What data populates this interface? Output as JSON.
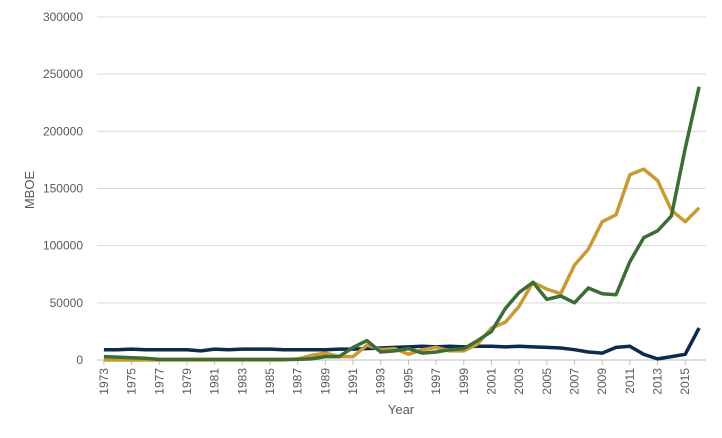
{
  "chart_data": {
    "type": "line",
    "x_label": "Year",
    "y_label": "MBOE",
    "x": [
      1973,
      1974,
      1975,
      1976,
      1977,
      1978,
      1979,
      1980,
      1981,
      1982,
      1983,
      1984,
      1985,
      1986,
      1987,
      1988,
      1989,
      1990,
      1991,
      1992,
      1993,
      1994,
      1995,
      1996,
      1997,
      1998,
      1999,
      2000,
      2001,
      2002,
      2003,
      2004,
      2005,
      2006,
      2007,
      2008,
      2009,
      2010,
      2011,
      2012,
      2013,
      2014,
      2015,
      2016
    ],
    "xlim": [
      1972.5,
      2016.5
    ],
    "xticks": [
      1973,
      1975,
      1977,
      1979,
      1981,
      1983,
      1985,
      1987,
      1989,
      1991,
      1993,
      1995,
      1997,
      1999,
      2001,
      2003,
      2005,
      2007,
      2009,
      2011,
      2013,
      2015
    ],
    "ylim": [
      0,
      300000
    ],
    "yticks": [
      0,
      50000,
      100000,
      150000,
      200000,
      250000,
      300000
    ],
    "grid": true,
    "series": [
      {
        "color": "#0e2b4b",
        "values": [
          9000,
          9000,
          9500,
          9000,
          9000,
          9000,
          9000,
          8000,
          9500,
          9000,
          9500,
          9500,
          9500,
          9000,
          9000,
          9000,
          9000,
          9500,
          9500,
          10000,
          10500,
          11000,
          11500,
          12000,
          11500,
          12000,
          11500,
          12000,
          12000,
          11500,
          12000,
          11500,
          11000,
          10500,
          9000,
          7000,
          6000,
          11000,
          12000,
          5000,
          1000,
          3000,
          5000,
          28000
        ]
      },
      {
        "color": "#c99a32",
        "values": [
          0,
          0,
          0,
          0,
          0,
          0,
          0,
          0,
          0,
          0,
          0,
          0,
          0,
          0,
          1000,
          4000,
          6000,
          3000,
          3000,
          13000,
          9000,
          10000,
          5000,
          9000,
          11000,
          8000,
          8000,
          14000,
          28000,
          33000,
          47000,
          68000,
          62000,
          58000,
          83000,
          97000,
          121000,
          127000,
          162000,
          167000,
          157000,
          131000,
          121000,
          133000
        ]
      },
      {
        "color": "#3b6d34",
        "values": [
          3000,
          2500,
          2000,
          1500,
          500,
          500,
          500,
          500,
          500,
          500,
          500,
          500,
          500,
          500,
          500,
          1000,
          3000,
          3000,
          11000,
          17000,
          7000,
          8000,
          10000,
          6000,
          7000,
          9000,
          10000,
          17000,
          25000,
          45000,
          59000,
          68000,
          53000,
          56000,
          50000,
          63000,
          58000,
          57000,
          86000,
          107000,
          113000,
          126000,
          185000,
          239000
        ]
      }
    ]
  }
}
